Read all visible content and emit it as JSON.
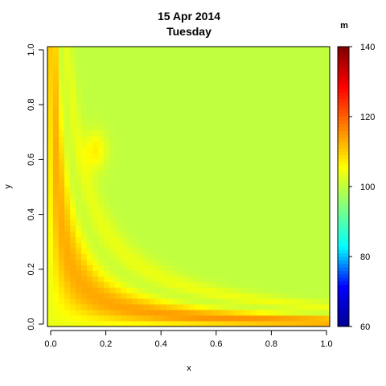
{
  "chart_data": {
    "type": "heatmap",
    "title": "15 Apr 2014",
    "subtitle": "Tuesday",
    "xlabel": "x",
    "ylabel": "y",
    "legend_title": "m",
    "xlim": [
      0,
      1
    ],
    "ylim": [
      0,
      1
    ],
    "zlim": [
      60,
      140
    ],
    "x_ticks": [
      "0.0",
      "0.2",
      "0.4",
      "0.6",
      "0.8",
      "1.0"
    ],
    "y_ticks": [
      "0.0",
      "0.2",
      "0.4",
      "0.6",
      "0.8",
      "1.0"
    ],
    "colorbar_ticks": [
      "60",
      "80",
      "100",
      "120",
      "140"
    ],
    "grid": false,
    "legend_position": "right",
    "colormap": [
      "#00008f",
      "#0000ff",
      "#00ffff",
      "#80ff80",
      "#ffff00",
      "#ff8000",
      "#ff0000",
      "#800000"
    ],
    "baseline_value": 100,
    "grid_resolution": 50,
    "ridges": [
      {
        "a": 0.12,
        "b": 0.1,
        "amplitude": 12
      },
      {
        "a": 0.18,
        "b": 0.17,
        "amplitude": 7
      },
      {
        "a": 0.26,
        "b": 0.26,
        "amplitude": 4
      }
    ],
    "troughs": [
      {
        "a": 0.09,
        "b": 0.06,
        "amplitude": -4
      },
      {
        "a": 0.22,
        "b": 0.21,
        "amplitude": -3
      }
    ],
    "hotspot": {
      "x": 0.17,
      "y": 0.63,
      "value": 117
    }
  }
}
